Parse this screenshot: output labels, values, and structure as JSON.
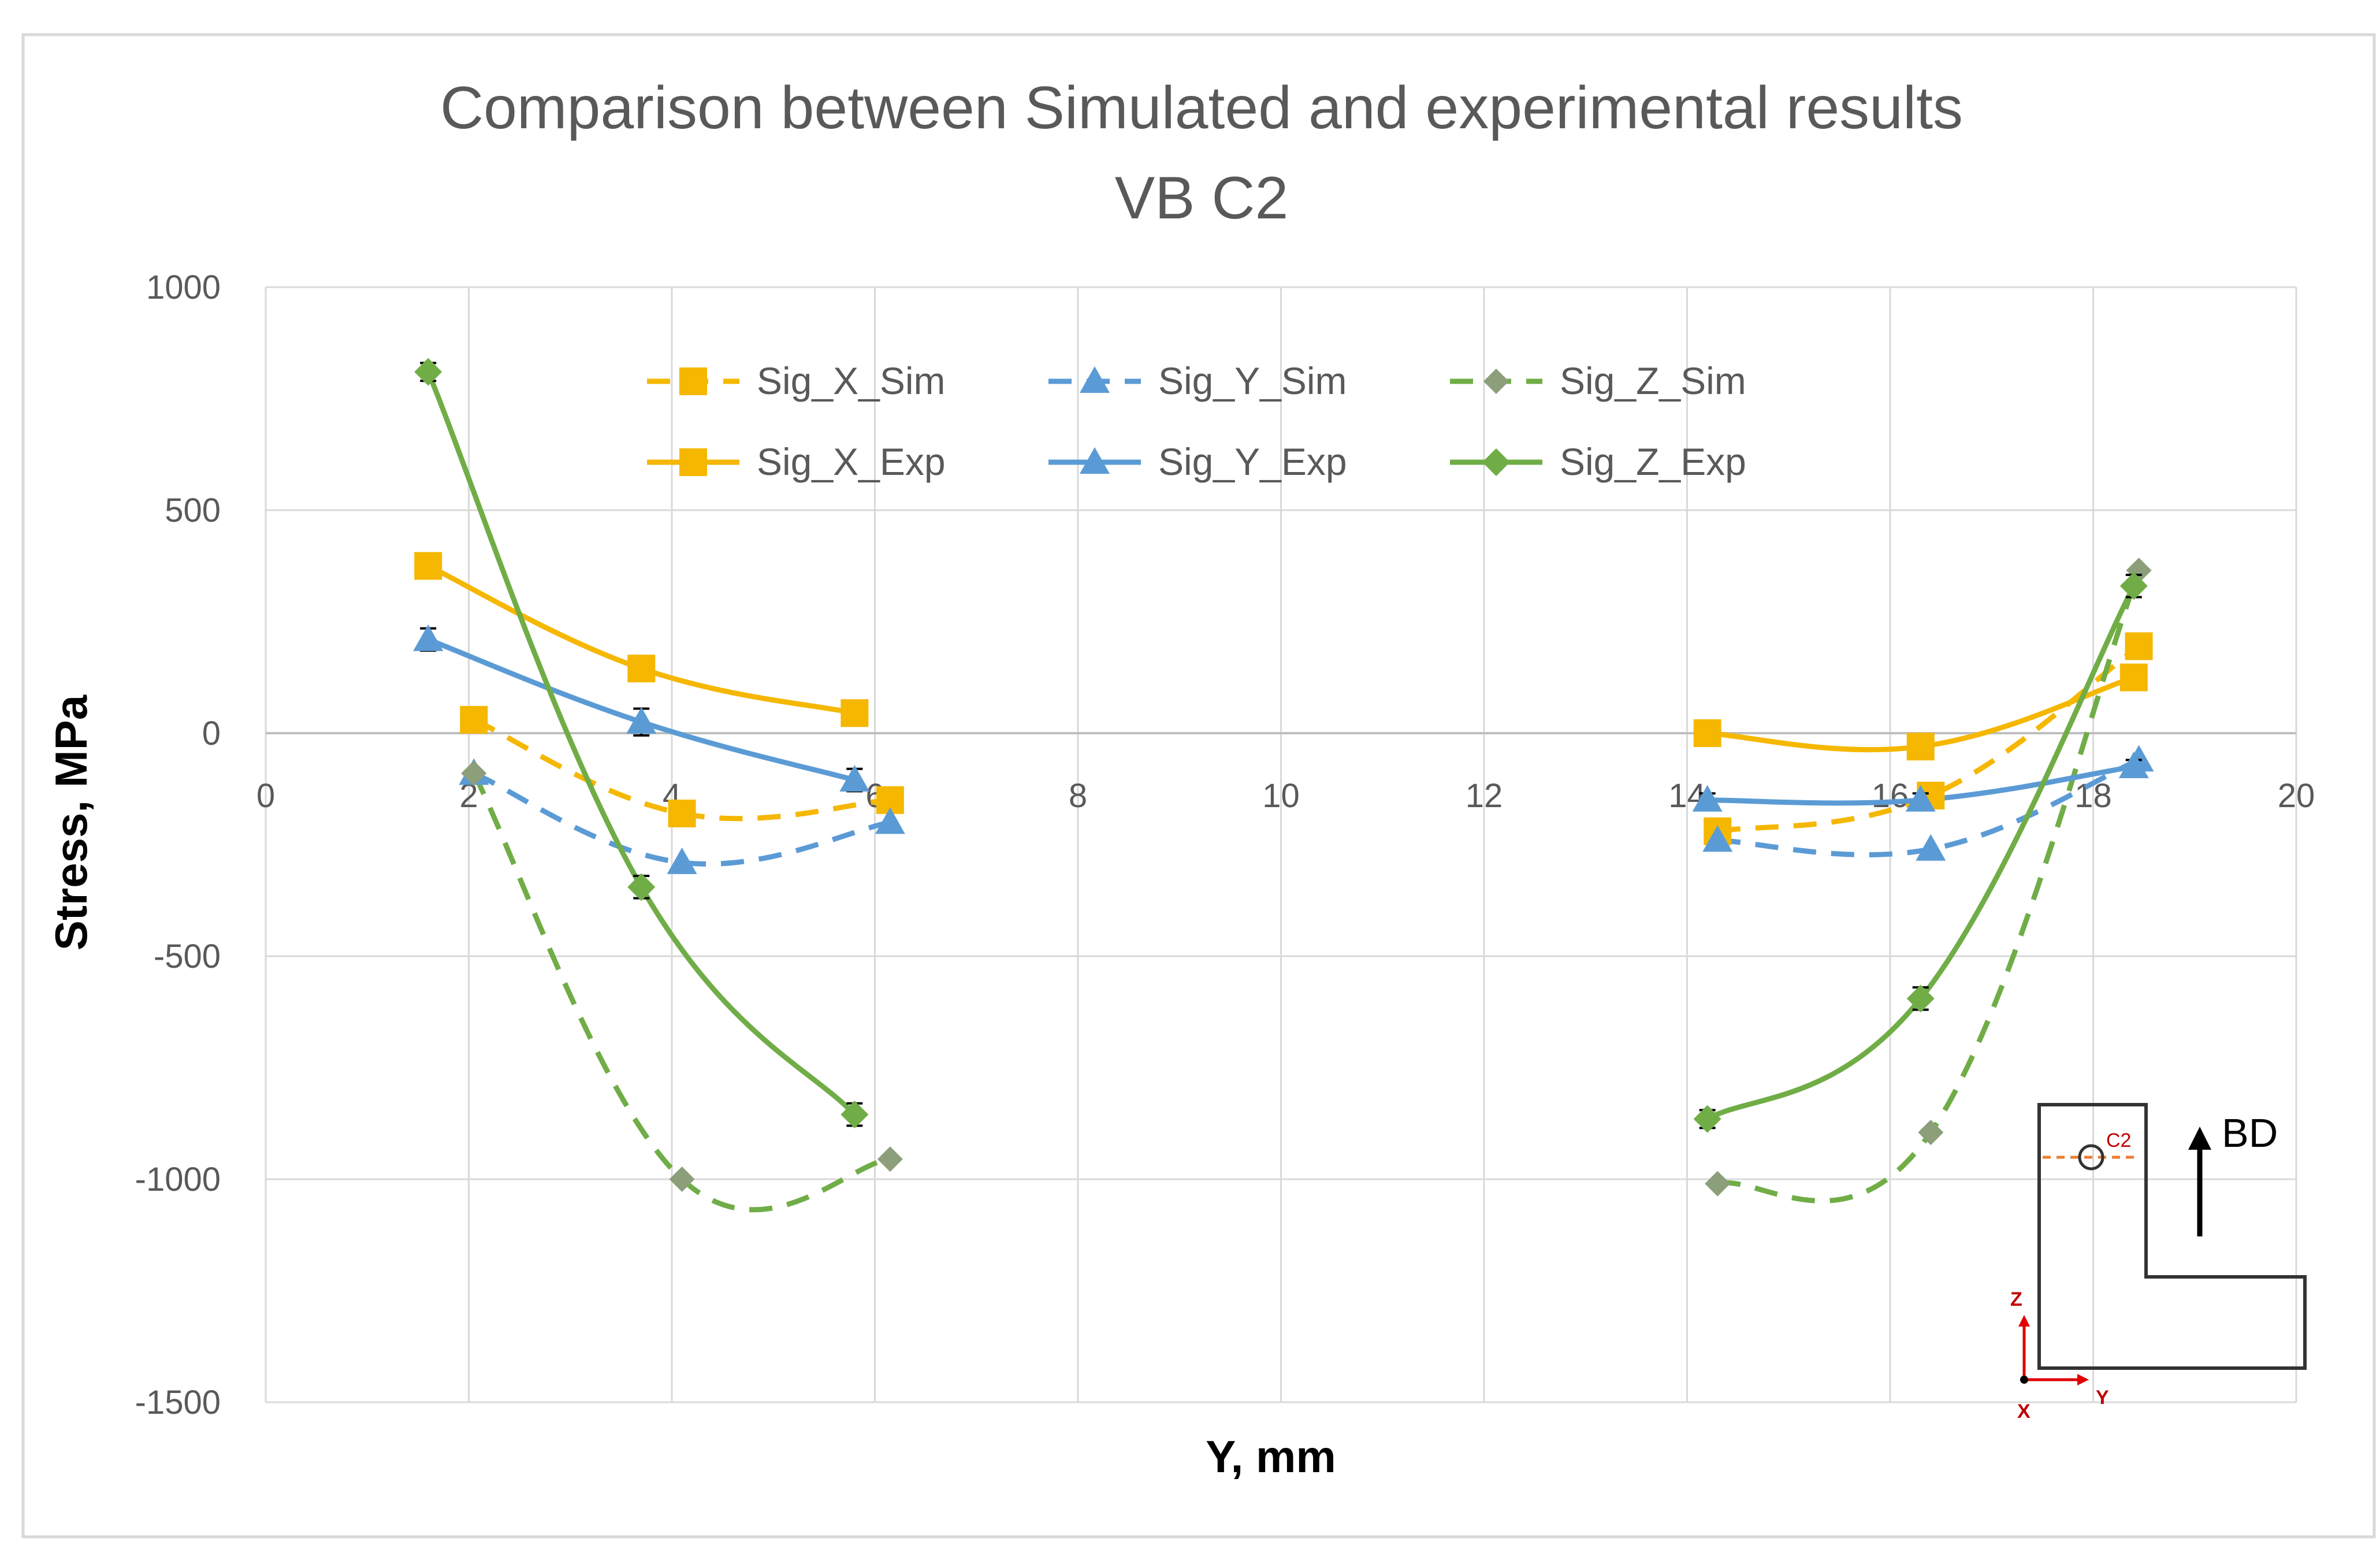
{
  "chart_data": {
    "type": "line",
    "title": "Comparison between Simulated and experimental results",
    "subtitle": "VB C2",
    "xlabel": "Y, mm",
    "ylabel": "Stress, MPa",
    "xlim": [
      0,
      20
    ],
    "ylim": [
      -1500,
      1000
    ],
    "xticks": [
      "0",
      "2",
      "4",
      "6",
      "8",
      "10",
      "12",
      "14",
      "16",
      "18",
      "20"
    ],
    "yticks": [
      "1000",
      "500",
      "0",
      "-500",
      "-1000",
      "-1500"
    ],
    "xtick_values": [
      0,
      2,
      4,
      6,
      8,
      10,
      12,
      14,
      16,
      18,
      20
    ],
    "ytick_values": [
      1000,
      500,
      0,
      -500,
      -1000,
      -1500
    ],
    "grid": true,
    "legend_position": "top-center",
    "series": [
      {
        "name": "Sig_X_Sim",
        "color": "#f5b700",
        "dash": "dashed",
        "marker": "square",
        "segments": [
          [
            [
              2.05,
              30
            ],
            [
              4.1,
              -180
            ],
            [
              6.15,
              -150
            ]
          ],
          [
            [
              14.3,
              -220
            ],
            [
              16.4,
              -140
            ],
            [
              18.45,
              195
            ]
          ]
        ],
        "errors": []
      },
      {
        "name": "Sig_Y_Sim",
        "color": "#5b9bd5",
        "dash": "dashed",
        "marker": "triangle",
        "segments": [
          [
            [
              2.05,
              -90
            ],
            [
              4.1,
              -290
            ],
            [
              6.15,
              -200
            ]
          ],
          [
            [
              14.3,
              -240
            ],
            [
              16.4,
              -260
            ],
            [
              18.45,
              -60
            ]
          ]
        ],
        "errors": []
      },
      {
        "name": "Sig_Z_Sim",
        "color": "#70ad47",
        "dash": "dashed",
        "marker": "diamond-gray",
        "segments": [
          [
            [
              2.05,
              -90
            ],
            [
              4.1,
              -1000
            ],
            [
              6.15,
              -955
            ]
          ],
          [
            [
              14.3,
              -1010
            ],
            [
              16.4,
              -895
            ],
            [
              18.45,
              365
            ]
          ]
        ],
        "errors": []
      },
      {
        "name": "Sig_X_Exp",
        "color": "#f5b700",
        "dash": "solid",
        "marker": "square",
        "segments": [
          [
            [
              1.6,
              375
            ],
            [
              3.7,
              145
            ],
            [
              5.8,
              45
            ]
          ],
          [
            [
              14.2,
              0
            ],
            [
              16.3,
              -30
            ],
            [
              18.4,
              125
            ]
          ]
        ],
        "errors": [
          15,
          15,
          10,
          10,
          10,
          15
        ]
      },
      {
        "name": "Sig_Y_Exp",
        "color": "#5b9bd5",
        "dash": "solid",
        "marker": "triangle",
        "segments": [
          [
            [
              1.6,
              210
            ],
            [
              3.7,
              25
            ],
            [
              5.8,
              -105
            ]
          ],
          [
            [
              14.2,
              -150
            ],
            [
              16.3,
              -150
            ],
            [
              18.4,
              -75
            ]
          ]
        ],
        "errors": [
          25,
          30,
          25,
          15,
          15,
          15
        ]
      },
      {
        "name": "Sig_Z_Exp",
        "color": "#70ad47",
        "dash": "solid",
        "marker": "diamond",
        "segments": [
          [
            [
              1.6,
              810
            ],
            [
              3.7,
              -345
            ],
            [
              5.8,
              -855
            ]
          ],
          [
            [
              14.2,
              -865
            ],
            [
              16.3,
              -595
            ],
            [
              18.4,
              330
            ]
          ]
        ],
        "errors": [
          20,
          25,
          25,
          20,
          25,
          25
        ]
      }
    ],
    "inset": {
      "label_C2": "C2",
      "label_BD": "BD",
      "axis_z": "Z",
      "axis_y": "Y",
      "axis_x": "X"
    }
  }
}
